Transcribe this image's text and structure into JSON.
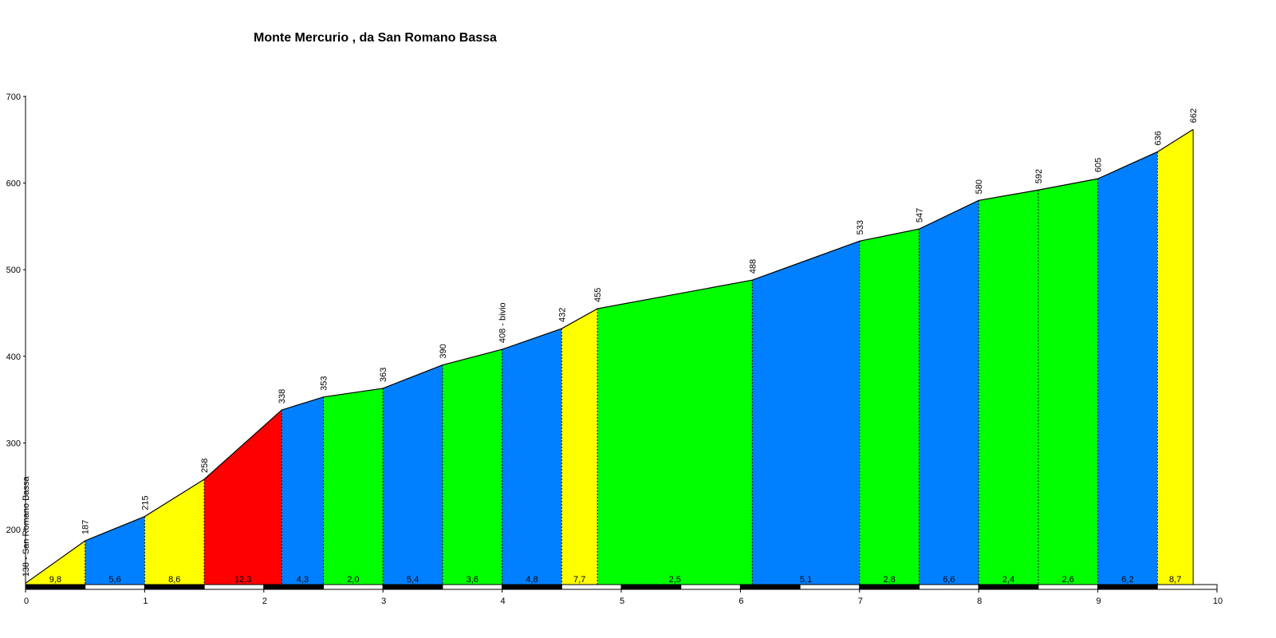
{
  "chart_data": {
    "type": "area",
    "title": "Monte Mercurio , da San Romano Bassa",
    "xlabel": "",
    "ylabel": "",
    "xlim": [
      0,
      10
    ],
    "ylim": [
      130,
      700
    ],
    "x_ticks": [
      "0",
      "1",
      "2",
      "3",
      "4",
      "5",
      "6",
      "7",
      "8",
      "9",
      "10"
    ],
    "y_ticks": [
      "200",
      "300",
      "400",
      "500",
      "600",
      "700"
    ],
    "grid": false,
    "points": [
      {
        "x": 0.0,
        "y": 138,
        "label": "138 - San Romano Bassa"
      },
      {
        "x": 0.5,
        "y": 187,
        "label": "187"
      },
      {
        "x": 1.0,
        "y": 215,
        "label": "215"
      },
      {
        "x": 1.5,
        "y": 258,
        "label": "258"
      },
      {
        "x": 2.15,
        "y": 338,
        "label": "338"
      },
      {
        "x": 2.5,
        "y": 353,
        "label": "353"
      },
      {
        "x": 3.0,
        "y": 363,
        "label": "363"
      },
      {
        "x": 3.5,
        "y": 390,
        "label": "390"
      },
      {
        "x": 4.0,
        "y": 408,
        "label": "408 - bivio"
      },
      {
        "x": 4.5,
        "y": 432,
        "label": "432"
      },
      {
        "x": 4.8,
        "y": 455,
        "label": "455"
      },
      {
        "x": 6.1,
        "y": 488,
        "label": "488"
      },
      {
        "x": 7.0,
        "y": 533,
        "label": "533"
      },
      {
        "x": 7.5,
        "y": 547,
        "label": "547"
      },
      {
        "x": 8.0,
        "y": 580,
        "label": "580"
      },
      {
        "x": 8.5,
        "y": 592,
        "label": "592"
      },
      {
        "x": 9.0,
        "y": 605,
        "label": "605"
      },
      {
        "x": 9.5,
        "y": 636,
        "label": "636"
      },
      {
        "x": 9.8,
        "y": 662,
        "label": "662"
      }
    ],
    "segments": [
      {
        "gradient": "9,8",
        "color": "#ffff00"
      },
      {
        "gradient": "5,6",
        "color": "#0080ff"
      },
      {
        "gradient": "8,6",
        "color": "#ffff00"
      },
      {
        "gradient": "12,3",
        "color": "#ff0000"
      },
      {
        "gradient": "4,3",
        "color": "#0080ff"
      },
      {
        "gradient": "2,0",
        "color": "#00ff00"
      },
      {
        "gradient": "5,4",
        "color": "#0080ff"
      },
      {
        "gradient": "3,6",
        "color": "#00ff00"
      },
      {
        "gradient": "4,8",
        "color": "#0080ff"
      },
      {
        "gradient": "7,7",
        "color": "#ffff00"
      },
      {
        "gradient": "2,5",
        "color": "#00ff00"
      },
      {
        "gradient": "5,1",
        "color": "#0080ff"
      },
      {
        "gradient": "2,8",
        "color": "#00ff00"
      },
      {
        "gradient": "6,6",
        "color": "#0080ff"
      },
      {
        "gradient": "2,4",
        "color": "#00ff00"
      },
      {
        "gradient": "2,6",
        "color": "#00ff00"
      },
      {
        "gradient": "6,2",
        "color": "#0080ff"
      },
      {
        "gradient": "8,7",
        "color": "#ffff00"
      }
    ]
  }
}
